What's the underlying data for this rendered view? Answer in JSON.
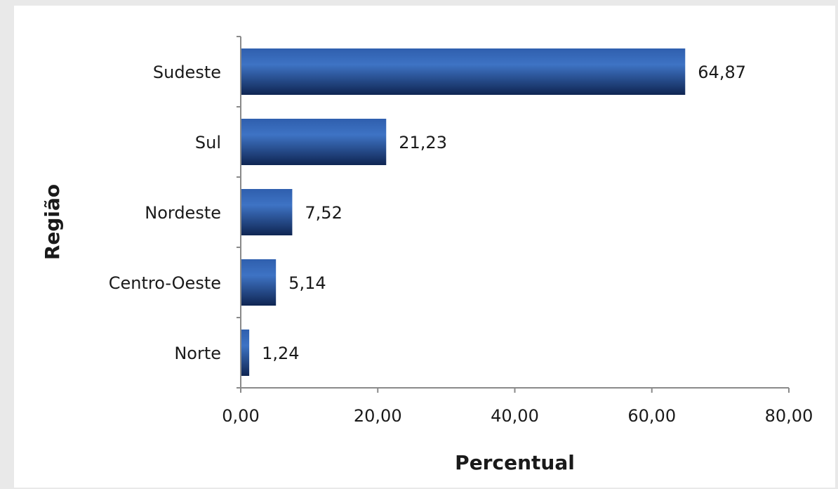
{
  "chart_data": {
    "type": "bar",
    "orientation": "horizontal",
    "categories": [
      "Sudeste",
      "Sul",
      "Nordeste",
      "Centro-Oeste",
      "Norte"
    ],
    "values": [
      64.87,
      21.23,
      7.52,
      5.14,
      1.24
    ],
    "value_labels": [
      "64,87",
      "21,23",
      "7,52",
      "5,14",
      "1,24"
    ],
    "xlabel": "Percentual",
    "ylabel": "Região",
    "xlim": [
      0,
      80
    ],
    "xticks": [
      0,
      20,
      40,
      60,
      80
    ],
    "xtick_labels": [
      "0,00",
      "20,00",
      "40,00",
      "60,00",
      "80,00"
    ],
    "grid": false,
    "legend": "none",
    "bar_color": "#2f5fae",
    "bar_color_dark": "#0f2552"
  }
}
